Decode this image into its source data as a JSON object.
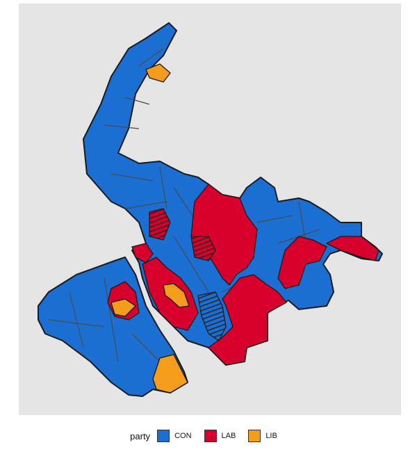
{
  "legend": {
    "title": "party",
    "entries": [
      {
        "label": "CON",
        "color": "#1b6fd2"
      },
      {
        "label": "LAB",
        "color": "#d7002c"
      },
      {
        "label": "LIB",
        "color": "#f49c1b"
      }
    ]
  },
  "colors": {
    "panel": "#e5e5e5",
    "border": "#1a1a1a",
    "ward_border": "#4a4a4a"
  }
}
